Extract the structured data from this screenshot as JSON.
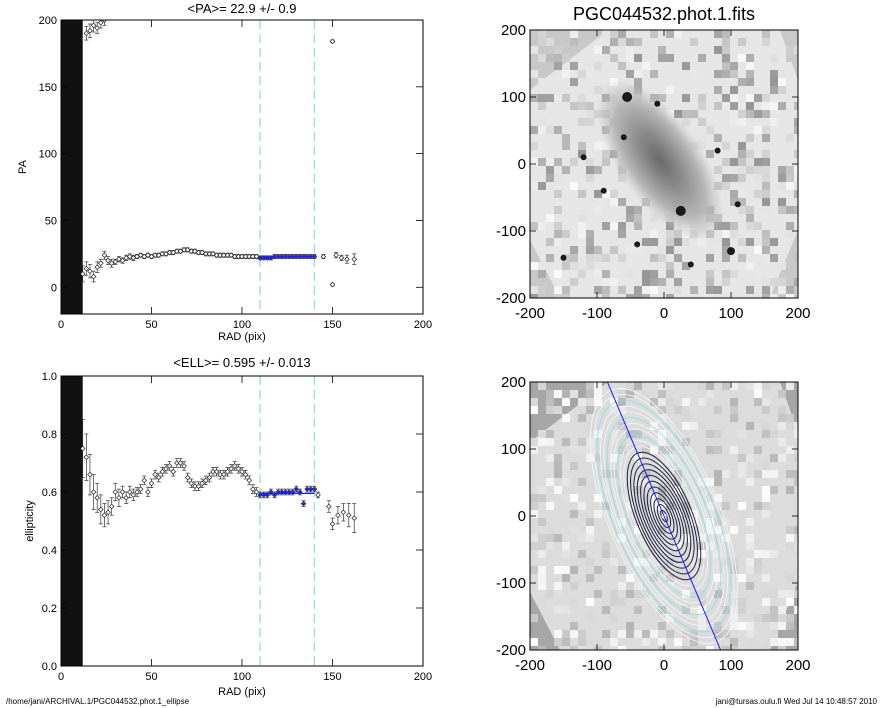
{
  "footer": {
    "path": "/home/jani/ARCHIVAL.1/PGC044532.phot.1_ellipse",
    "host_time": "jani@tursas.oulu.fi  Wed Jul 14 10:48:57 2010"
  },
  "colors": {
    "cut_line": "#8fe0e0",
    "fit_line": "#1a1aff",
    "disk_band": "#111111"
  },
  "chart_data": [
    {
      "id": "pa",
      "type": "scatter",
      "title": "<PA>=  22.9 +/-   0.9",
      "xlabel": "RAD (pix)",
      "ylabel": "PA",
      "xlim": [
        0,
        200
      ],
      "ylim": [
        -20,
        200
      ],
      "xticks": [
        "0",
        "50",
        "100",
        "150",
        "200"
      ],
      "yticks": [
        "0",
        "50",
        "100",
        "150",
        "200"
      ],
      "ytick_values": [
        0,
        50,
        100,
        150,
        200
      ],
      "cut_lines": [
        110,
        140
      ],
      "fit_value": 22.9,
      "points": [
        [
          12,
          10,
          6
        ],
        [
          14,
          14,
          5
        ],
        [
          16,
          12,
          5
        ],
        [
          18,
          8,
          4
        ],
        [
          20,
          15,
          4
        ],
        [
          22,
          18,
          3
        ],
        [
          24,
          24,
          3
        ],
        [
          26,
          20,
          3
        ],
        [
          28,
          18,
          3
        ],
        [
          30,
          19,
          2
        ],
        [
          32,
          21,
          2
        ],
        [
          34,
          20,
          2
        ],
        [
          36,
          22,
          2
        ],
        [
          38,
          23,
          2
        ],
        [
          40,
          22,
          2
        ],
        [
          42,
          23,
          1.5
        ],
        [
          44,
          24,
          1.5
        ],
        [
          46,
          23,
          1.5
        ],
        [
          48,
          24,
          1.5
        ],
        [
          50,
          23,
          1.5
        ],
        [
          52,
          24,
          1.5
        ],
        [
          54,
          24,
          1.5
        ],
        [
          56,
          25,
          1.5
        ],
        [
          58,
          25,
          1.5
        ],
        [
          60,
          26,
          1.5
        ],
        [
          62,
          26,
          1.5
        ],
        [
          64,
          27,
          1.5
        ],
        [
          66,
          27,
          1.5
        ],
        [
          68,
          28,
          1.5
        ],
        [
          70,
          28,
          1.5
        ],
        [
          72,
          27,
          1.5
        ],
        [
          74,
          27,
          1.5
        ],
        [
          76,
          26,
          1.5
        ],
        [
          78,
          26,
          1.5
        ],
        [
          80,
          25,
          1.5
        ],
        [
          82,
          25,
          1.5
        ],
        [
          84,
          25,
          1.5
        ],
        [
          86,
          24,
          1.5
        ],
        [
          88,
          24,
          1.5
        ],
        [
          90,
          24,
          1.5
        ],
        [
          92,
          24,
          1.5
        ],
        [
          94,
          24,
          1.5
        ],
        [
          96,
          23,
          1.5
        ],
        [
          98,
          23,
          1.5
        ],
        [
          100,
          23,
          1.5
        ],
        [
          102,
          23,
          1.5
        ],
        [
          104,
          23,
          1.5
        ],
        [
          106,
          23,
          1.5
        ],
        [
          108,
          23,
          1.5
        ],
        [
          110,
          22,
          1.5
        ],
        [
          112,
          22,
          1.5
        ],
        [
          114,
          22,
          1.5
        ],
        [
          116,
          22,
          1.5
        ],
        [
          118,
          23,
          1.5
        ],
        [
          120,
          23,
          1.5
        ],
        [
          122,
          23,
          1.5
        ],
        [
          124,
          23,
          1.5
        ],
        [
          126,
          23,
          1.5
        ],
        [
          128,
          23,
          1.5
        ],
        [
          130,
          23,
          1.5
        ],
        [
          132,
          23,
          1.5
        ],
        [
          134,
          23,
          1.5
        ],
        [
          136,
          23,
          1.5
        ],
        [
          138,
          23,
          1.5
        ],
        [
          140,
          23,
          1.5
        ],
        [
          145,
          23,
          1.5
        ],
        [
          150,
          2,
          1
        ],
        [
          150,
          184,
          1
        ],
        [
          152,
          24,
          2
        ],
        [
          155,
          22,
          2
        ],
        [
          158,
          21,
          3
        ],
        [
          162,
          21,
          4
        ]
      ],
      "top_points": [
        [
          14,
          190,
          5
        ],
        [
          16,
          192,
          5
        ],
        [
          18,
          196,
          5
        ],
        [
          20,
          194,
          4
        ],
        [
          22,
          198,
          4
        ],
        [
          24,
          200,
          4
        ]
      ]
    },
    {
      "id": "ell",
      "type": "scatter",
      "title": "<ELL>= 0.595 +/-  0.013",
      "xlabel": "RAD (pix)",
      "ylabel": "ellipticity",
      "xlim": [
        0,
        200
      ],
      "ylim": [
        0,
        1
      ],
      "xticks": [
        "0",
        "50",
        "100",
        "150",
        "200"
      ],
      "yticks": [
        "0.0",
        "0.2",
        "0.4",
        "0.6",
        "0.8",
        "1.0"
      ],
      "ytick_values": [
        0,
        0.2,
        0.4,
        0.6,
        0.8,
        1.0
      ],
      "cut_lines": [
        110,
        140
      ],
      "fit_value": 0.595,
      "points": [
        [
          12,
          0.75,
          0.1
        ],
        [
          14,
          0.72,
          0.08
        ],
        [
          16,
          0.66,
          0.07
        ],
        [
          18,
          0.6,
          0.06
        ],
        [
          20,
          0.58,
          0.05
        ],
        [
          22,
          0.54,
          0.05
        ],
        [
          24,
          0.52,
          0.04
        ],
        [
          26,
          0.53,
          0.04
        ],
        [
          28,
          0.55,
          0.03
        ],
        [
          30,
          0.6,
          0.03
        ],
        [
          32,
          0.58,
          0.03
        ],
        [
          34,
          0.6,
          0.02
        ],
        [
          36,
          0.58,
          0.02
        ],
        [
          38,
          0.6,
          0.02
        ],
        [
          40,
          0.59,
          0.02
        ],
        [
          42,
          0.6,
          0.015
        ],
        [
          44,
          0.61,
          0.015
        ],
        [
          46,
          0.64,
          0.015
        ],
        [
          48,
          0.6,
          0.015
        ],
        [
          50,
          0.63,
          0.015
        ],
        [
          52,
          0.66,
          0.015
        ],
        [
          54,
          0.65,
          0.015
        ],
        [
          56,
          0.67,
          0.015
        ],
        [
          58,
          0.68,
          0.015
        ],
        [
          60,
          0.69,
          0.015
        ],
        [
          62,
          0.67,
          0.015
        ],
        [
          64,
          0.7,
          0.015
        ],
        [
          66,
          0.7,
          0.015
        ],
        [
          68,
          0.69,
          0.015
        ],
        [
          70,
          0.65,
          0.015
        ],
        [
          72,
          0.63,
          0.015
        ],
        [
          74,
          0.62,
          0.015
        ],
        [
          76,
          0.62,
          0.015
        ],
        [
          78,
          0.63,
          0.015
        ],
        [
          80,
          0.64,
          0.015
        ],
        [
          82,
          0.65,
          0.015
        ],
        [
          84,
          0.67,
          0.015
        ],
        [
          86,
          0.67,
          0.015
        ],
        [
          88,
          0.66,
          0.015
        ],
        [
          90,
          0.66,
          0.015
        ],
        [
          92,
          0.67,
          0.015
        ],
        [
          94,
          0.68,
          0.015
        ],
        [
          96,
          0.69,
          0.015
        ],
        [
          98,
          0.68,
          0.015
        ],
        [
          100,
          0.67,
          0.015
        ],
        [
          102,
          0.66,
          0.015
        ],
        [
          104,
          0.64,
          0.015
        ],
        [
          106,
          0.61,
          0.015
        ],
        [
          108,
          0.6,
          0.015
        ],
        [
          110,
          0.59,
          0.01
        ],
        [
          112,
          0.59,
          0.01
        ],
        [
          114,
          0.59,
          0.01
        ],
        [
          116,
          0.6,
          0.01
        ],
        [
          118,
          0.59,
          0.01
        ],
        [
          120,
          0.6,
          0.01
        ],
        [
          122,
          0.6,
          0.01
        ],
        [
          124,
          0.6,
          0.01
        ],
        [
          126,
          0.6,
          0.01
        ],
        [
          128,
          0.6,
          0.01
        ],
        [
          130,
          0.61,
          0.01
        ],
        [
          132,
          0.6,
          0.01
        ],
        [
          134,
          0.56,
          0.01
        ],
        [
          136,
          0.61,
          0.01
        ],
        [
          138,
          0.61,
          0.01
        ],
        [
          140,
          0.61,
          0.01
        ],
        [
          142,
          0.59,
          0.01
        ],
        [
          148,
          0.55,
          0.02
        ],
        [
          150,
          0.49,
          0.02
        ],
        [
          153,
          0.52,
          0.03
        ],
        [
          156,
          0.53,
          0.03
        ],
        [
          159,
          0.52,
          0.04
        ],
        [
          162,
          0.51,
          0.05
        ]
      ]
    },
    {
      "id": "img",
      "type": "heatmap",
      "title": "PGC044532.phot.1.fits",
      "xlim": [
        -200,
        200
      ],
      "ylim": [
        -200,
        200
      ],
      "xticks": [
        "-200",
        "-100",
        "0",
        "100",
        "200"
      ],
      "yticks": [
        "-200",
        "-100",
        "0",
        "100",
        "200"
      ],
      "tick_values": [
        -200,
        -100,
        0,
        100,
        200
      ]
    },
    {
      "id": "cont",
      "type": "heatmap",
      "title": "",
      "xlim": [
        -200,
        200
      ],
      "ylim": [
        -200,
        200
      ],
      "xticks": [
        "-200",
        "-100",
        "0",
        "100",
        "200"
      ],
      "yticks": [
        "-200",
        "-100",
        "0",
        "100",
        "200"
      ],
      "tick_values": [
        -200,
        -100,
        0,
        100,
        200
      ],
      "pa_deg": 22.9,
      "ellipticity": 0.595
    }
  ]
}
